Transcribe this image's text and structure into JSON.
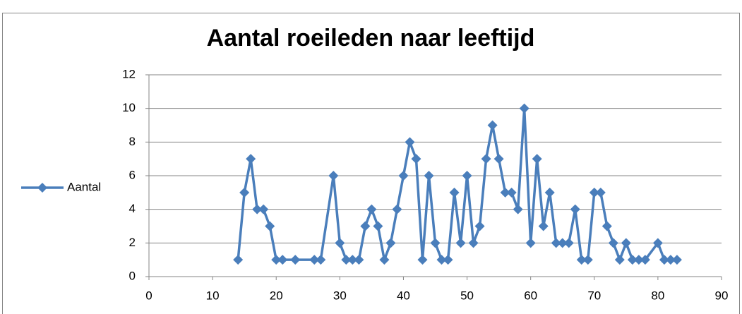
{
  "chart_data": {
    "type": "line",
    "title": "Aantal roeileden naar leeftijd",
    "x": [
      14,
      15,
      16,
      17,
      18,
      19,
      20,
      21,
      23,
      26,
      27,
      29,
      30,
      31,
      32,
      33,
      34,
      35,
      36,
      37,
      38,
      39,
      40,
      41,
      42,
      43,
      44,
      45,
      46,
      47,
      48,
      49,
      50,
      51,
      52,
      53,
      54,
      55,
      56,
      57,
      58,
      59,
      60,
      61,
      62,
      63,
      64,
      65,
      66,
      67,
      68,
      69,
      70,
      71,
      72,
      73,
      74,
      75,
      76,
      77,
      78,
      80,
      81,
      82,
      83
    ],
    "series": [
      {
        "name": "Aantal",
        "color": "#4a7ebb",
        "values": [
          1,
          5,
          7,
          4,
          4,
          3,
          1,
          1,
          1,
          1,
          1,
          6,
          2,
          1,
          1,
          1,
          3,
          4,
          3,
          1,
          2,
          4,
          6,
          8,
          7,
          1,
          6,
          2,
          1,
          1,
          5,
          2,
          6,
          2,
          3,
          7,
          9,
          7,
          5,
          5,
          4,
          10,
          2,
          7,
          3,
          5,
          2,
          2,
          2,
          4,
          1,
          1,
          5,
          5,
          3,
          2,
          1,
          2,
          1,
          1,
          1,
          2,
          1,
          1,
          1
        ]
      }
    ],
    "xlim": [
      0,
      90
    ],
    "xticks": [
      0,
      10,
      20,
      30,
      40,
      50,
      60,
      70,
      80,
      90
    ],
    "ylim": [
      0,
      12
    ],
    "yticks": [
      0,
      2,
      4,
      6,
      8,
      10,
      12
    ],
    "grid": true,
    "legend": "left"
  }
}
